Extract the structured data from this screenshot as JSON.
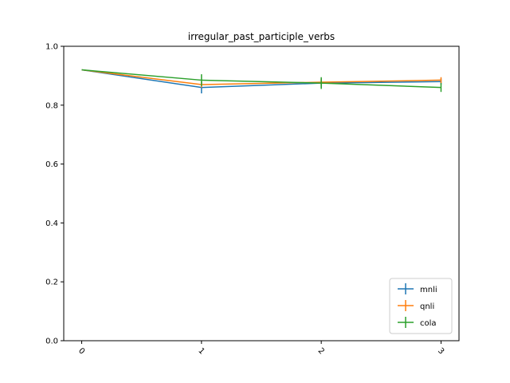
{
  "chart_data": {
    "type": "line",
    "title": "irregular_past_participle_verbs",
    "xlabel": "",
    "ylabel": "",
    "x": [
      0,
      1,
      2,
      3
    ],
    "x_tick_labels": [
      "0",
      "1",
      "2",
      "3"
    ],
    "y_ticks": [
      0.0,
      0.2,
      0.4,
      0.6,
      0.8,
      1.0
    ],
    "y_tick_labels": [
      "0.0",
      "0.2",
      "0.4",
      "0.6",
      "0.8",
      "1.0"
    ],
    "xlim": [
      -0.15,
      3.15
    ],
    "ylim": [
      0.0,
      1.0
    ],
    "grid": false,
    "legend_position": "lower-right",
    "error_bars": true,
    "series": [
      {
        "name": "mnli",
        "color": "#1f77b4",
        "values": [
          0.92,
          0.86,
          0.875,
          0.88
        ],
        "errors": [
          0.0,
          0.02,
          0.015,
          0.01
        ]
      },
      {
        "name": "qnli",
        "color": "#ff7f0e",
        "values": [
          0.92,
          0.87,
          0.878,
          0.885
        ],
        "errors": [
          0.0,
          0.01,
          0.01,
          0.01
        ]
      },
      {
        "name": "cola",
        "color": "#2ca02c",
        "values": [
          0.92,
          0.885,
          0.875,
          0.86
        ],
        "errors": [
          0.0,
          0.02,
          0.02,
          0.015
        ]
      }
    ]
  }
}
